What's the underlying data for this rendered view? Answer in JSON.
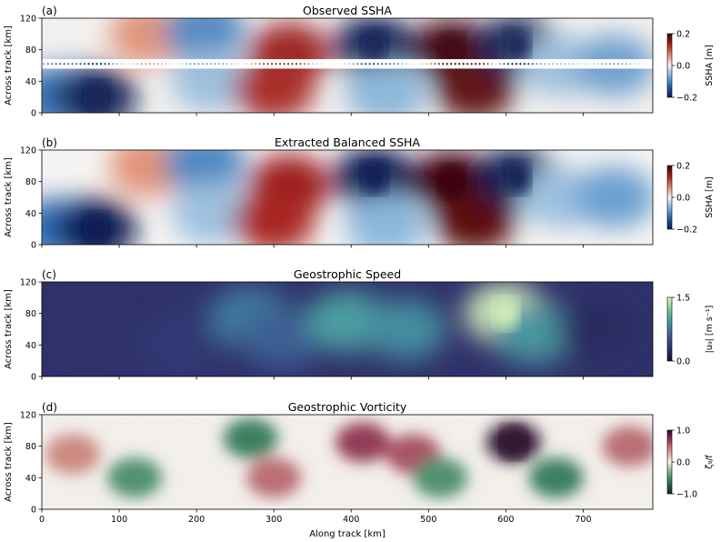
{
  "figure": {
    "xlabel": "Along track [km]",
    "xticks": [
      0,
      100,
      200,
      300,
      400,
      500,
      600,
      700
    ],
    "xlim": [
      0,
      790
    ]
  },
  "chart_data": [
    {
      "type": "heatmap",
      "panel_label": "(a)",
      "title": "Observed SSHA",
      "ylabel": "Across track [km]",
      "yticks": [
        0,
        40,
        80,
        120
      ],
      "ylim": [
        0,
        120
      ],
      "colorbar": {
        "label": "SSHA [m]",
        "ticks": [
          "0.2",
          "0.0",
          "−0.2"
        ],
        "range": [
          -0.2,
          0.2
        ],
        "colors": [
          "#0f1a55",
          "#1f5fae",
          "#7fb0d8",
          "#f6f4f2",
          "#e0886a",
          "#a5201d",
          "#3c0608"
        ]
      },
      "nadir_gap": [
        56,
        68
      ],
      "features": [
        {
          "x": 20,
          "y": 20,
          "value": -0.12
        },
        {
          "x": 70,
          "y": 20,
          "value": -0.2
        },
        {
          "x": 140,
          "y": 100,
          "value": 0.06
        },
        {
          "x": 210,
          "y": 105,
          "value": -0.1
        },
        {
          "x": 220,
          "y": 40,
          "value": -0.05
        },
        {
          "x": 320,
          "y": 75,
          "value": 0.14
        },
        {
          "x": 300,
          "y": 30,
          "value": 0.13
        },
        {
          "x": 430,
          "y": 85,
          "value": -0.2
        },
        {
          "x": 445,
          "y": 25,
          "value": -0.06
        },
        {
          "x": 530,
          "y": 80,
          "value": 0.2
        },
        {
          "x": 560,
          "y": 30,
          "value": 0.18
        },
        {
          "x": 615,
          "y": 85,
          "value": -0.22
        },
        {
          "x": 670,
          "y": 60,
          "value": -0.05
        },
        {
          "x": 740,
          "y": 60,
          "value": -0.08
        }
      ]
    },
    {
      "type": "heatmap",
      "panel_label": "(b)",
      "title": "Extracted Balanced SSHA",
      "ylabel": "Across track [km]",
      "yticks": [
        0,
        40,
        80,
        120
      ],
      "ylim": [
        0,
        120
      ],
      "colorbar": {
        "label": "SSHA [m]",
        "ticks": [
          "0.2",
          "0.0",
          "−0.2"
        ],
        "range": [
          -0.2,
          0.2
        ],
        "colors": [
          "#0f1a55",
          "#1f5fae",
          "#7fb0d8",
          "#f6f4f2",
          "#e0886a",
          "#a5201d",
          "#3c0608"
        ]
      },
      "features": [
        {
          "x": 20,
          "y": 20,
          "value": -0.12
        },
        {
          "x": 70,
          "y": 20,
          "value": -0.2
        },
        {
          "x": 140,
          "y": 100,
          "value": 0.06
        },
        {
          "x": 210,
          "y": 105,
          "value": -0.1
        },
        {
          "x": 220,
          "y": 40,
          "value": -0.05
        },
        {
          "x": 320,
          "y": 75,
          "value": 0.14
        },
        {
          "x": 300,
          "y": 30,
          "value": 0.13
        },
        {
          "x": 430,
          "y": 85,
          "value": -0.2
        },
        {
          "x": 445,
          "y": 25,
          "value": -0.06
        },
        {
          "x": 530,
          "y": 80,
          "value": 0.2
        },
        {
          "x": 560,
          "y": 30,
          "value": 0.18
        },
        {
          "x": 615,
          "y": 85,
          "value": -0.22
        },
        {
          "x": 670,
          "y": 60,
          "value": -0.05
        },
        {
          "x": 740,
          "y": 60,
          "value": -0.08
        }
      ]
    },
    {
      "type": "heatmap",
      "panel_label": "(c)",
      "title": "Geostrophic Speed",
      "ylabel": "Across track [km]",
      "yticks": [
        0,
        40,
        80,
        120
      ],
      "ylim": [
        0,
        120
      ],
      "colorbar": {
        "label": "|u₉| [m s⁻¹]",
        "ticks": [
          "1.5",
          "0.0"
        ],
        "range": [
          0,
          1.5
        ],
        "colors": [
          "#15142d",
          "#2b2c62",
          "#3d4c8c",
          "#3f7a9e",
          "#4fa6a0",
          "#86cf95",
          "#e8f5c6"
        ]
      },
      "features": [
        {
          "x": 60,
          "y": 60,
          "value": 0.3
        },
        {
          "x": 180,
          "y": 40,
          "value": 0.35
        },
        {
          "x": 270,
          "y": 75,
          "value": 0.75
        },
        {
          "x": 310,
          "y": 50,
          "value": 0.6
        },
        {
          "x": 395,
          "y": 70,
          "value": 0.95
        },
        {
          "x": 470,
          "y": 60,
          "value": 0.85
        },
        {
          "x": 600,
          "y": 80,
          "value": 1.45
        },
        {
          "x": 635,
          "y": 55,
          "value": 0.9
        },
        {
          "x": 720,
          "y": 60,
          "value": 0.25
        }
      ]
    },
    {
      "type": "heatmap",
      "panel_label": "(d)",
      "title": "Geostrophic Vorticity",
      "ylabel": "Across track [km]",
      "yticks": [
        0,
        40,
        80,
        120
      ],
      "ylim": [
        0,
        120
      ],
      "colorbar": {
        "label": "ζ₉/f",
        "ticks": [
          "1.0",
          "0.0",
          "−1.0"
        ],
        "range": [
          -1,
          1
        ],
        "colors": [
          "#102b1d",
          "#27704f",
          "#6fae8b",
          "#f6f2ee",
          "#d99a8a",
          "#9b3a55",
          "#2a0c2a"
        ]
      },
      "features": [
        {
          "x": 40,
          "y": 70,
          "value": 0.4
        },
        {
          "x": 120,
          "y": 40,
          "value": -0.5
        },
        {
          "x": 270,
          "y": 90,
          "value": -0.6
        },
        {
          "x": 300,
          "y": 40,
          "value": 0.5
        },
        {
          "x": 415,
          "y": 85,
          "value": 0.7
        },
        {
          "x": 480,
          "y": 70,
          "value": 0.6
        },
        {
          "x": 515,
          "y": 40,
          "value": -0.5
        },
        {
          "x": 610,
          "y": 85,
          "value": 1.1
        },
        {
          "x": 665,
          "y": 40,
          "value": -0.6
        },
        {
          "x": 760,
          "y": 80,
          "value": 0.5
        }
      ]
    }
  ]
}
